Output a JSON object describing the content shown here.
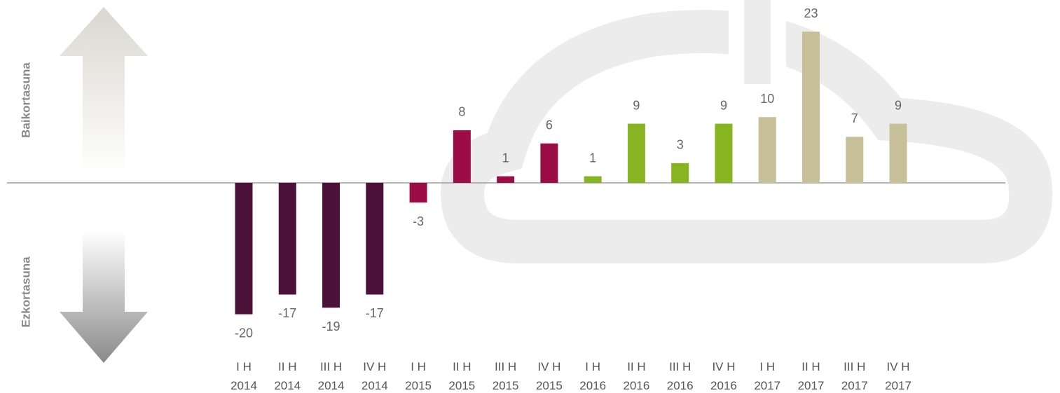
{
  "chart_data": {
    "type": "bar",
    "y_label_top": "Baikortasuna",
    "y_label_bottom": "Ezkortasuna",
    "categories": [
      "I H 2014",
      "II H 2014",
      "III H 2014",
      "IV H 2014",
      "I H 2015",
      "II H 2015",
      "III H 2015",
      "IV H 2015",
      "I H 2016",
      "II H 2016",
      "III H 2016",
      "IV H 2016",
      "I H 2017",
      "II H 2017",
      "III H 2017",
      "IV H 2017"
    ],
    "values": [
      -20,
      -17,
      -19,
      -17,
      -3,
      8,
      1,
      6,
      1,
      9,
      3,
      9,
      10,
      23,
      7,
      9
    ],
    "colors": [
      "#4b1139",
      "#4b1139",
      "#4b1139",
      "#4b1139",
      "#9c0c46",
      "#9c0c46",
      "#9c0c46",
      "#9c0c46",
      "#87b521",
      "#87b521",
      "#87b521",
      "#87b521",
      "#c6bf98",
      "#c6bf98",
      "#c6bf98",
      "#c6bf98"
    ],
    "ylim": [
      -25,
      25
    ]
  }
}
